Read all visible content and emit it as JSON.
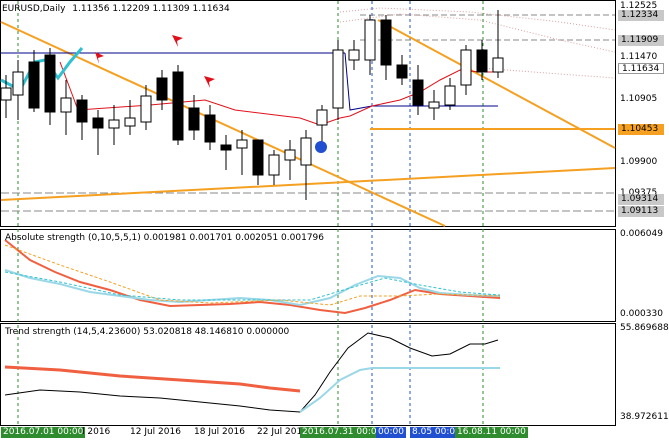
{
  "header": {
    "symbol": "EURUSD,Daily",
    "ohlc": "1.11356 1.12209 1.11309 1.11634"
  },
  "price_axis": {
    "labels": [
      {
        "text": "1.12525",
        "y": 1.12525
      },
      {
        "text": "1.11470",
        "y": 1.1147
      },
      {
        "text": "1.10905",
        "y": 1.10905
      },
      {
        "text": "1.09900",
        "y": 1.099
      },
      {
        "text": "1.09375",
        "y": 1.09375
      }
    ],
    "tags": [
      {
        "text": "1.12334",
        "style": "gray"
      },
      {
        "text": "1.11909",
        "style": "gray"
      },
      {
        "text": "1.11634",
        "style": "cur"
      },
      {
        "text": "1.10453",
        "style": "orange"
      },
      {
        "text": "1.09314",
        "style": "gray"
      },
      {
        "text": "1.09113",
        "style": "gray"
      }
    ]
  },
  "panels": {
    "abs": {
      "title": "Absolute strength (0,10,5,5,1) 0.001981 0.001701 0.002051 0.001796",
      "axis_top": "0.006049",
      "axis_bottom": "0.000330"
    },
    "trend": {
      "title": "Trend strength (14,5,4.23600) 53.020818 48.146810 0.000000",
      "axis_top": "55.869688",
      "axis_bottom": "38.972611"
    }
  },
  "time_axis": [
    {
      "text": "2016.07.01 00:00",
      "style": "green"
    },
    {
      "text": "l 2016",
      "style": "plain"
    },
    {
      "text": "12 Jul 2016",
      "style": "plain"
    },
    {
      "text": "18 Jul 2016",
      "style": "plain"
    },
    {
      "text": "22 Jul 201",
      "style": "plain"
    },
    {
      "text": "2016.07.31 00:00",
      "style": "green"
    },
    {
      "text": "00:00",
      "style": "blue"
    },
    {
      "text": "8.05 00:00",
      "style": "blue"
    },
    {
      "text": "16.08.11 00:00",
      "style": "green"
    }
  ],
  "colors": {
    "bull_candle": "#ffffff",
    "bear_candle": "#000000",
    "orange_line": "#f5a020",
    "navy_line": "#00008b",
    "red_line": "#e0101a",
    "cyan_line": "#30c0d0",
    "abs_red": "#f06040",
    "abs_blue": "#9ad8e8",
    "trend_black": "#000000",
    "trend_blue": "#9ad8e8",
    "trend_red": "#f06040"
  },
  "chart_data": {
    "type": "candlestick",
    "symbol": "EURUSD",
    "timeframe": "Daily",
    "current": {
      "open": 1.11356,
      "high": 1.12209,
      "low": 1.11309,
      "close": 1.11634
    },
    "horizontal_levels": [
      1.12334,
      1.11909,
      1.10453,
      1.09314,
      1.09113
    ],
    "ylim": [
      1.089,
      1.127
    ]
  }
}
